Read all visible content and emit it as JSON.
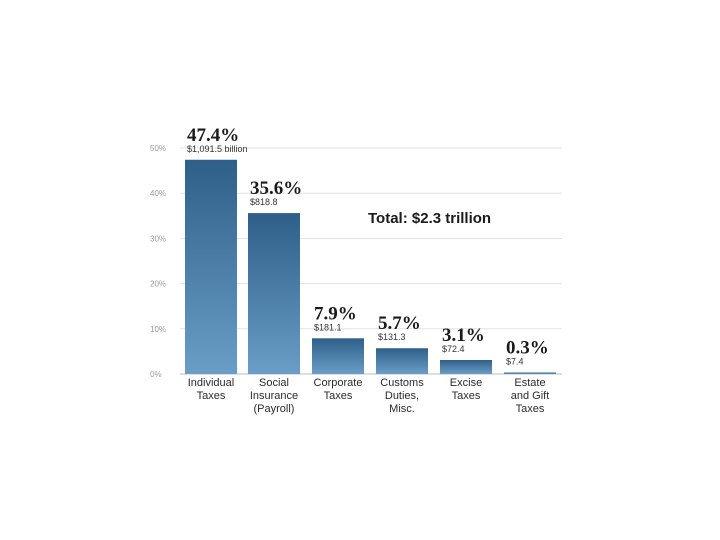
{
  "chart_data": {
    "type": "bar",
    "annotation": "Total: $2.3 trillion",
    "categories": [
      [
        "Individual",
        "Taxes"
      ],
      [
        "Social",
        "Insurance",
        "(Payroll)"
      ],
      [
        "Corporate",
        "Taxes"
      ],
      [
        "Customs",
        "Duties,",
        "Misc."
      ],
      [
        "Excise",
        "Taxes"
      ],
      [
        "Estate",
        "and Gift",
        "Taxes"
      ]
    ],
    "values": [
      47.4,
      35.6,
      7.9,
      5.7,
      3.1,
      0.3
    ],
    "value_labels": [
      "47.4%",
      "35.6%",
      "7.9%",
      "5.7%",
      "3.1%",
      "0.3%"
    ],
    "amount_labels": [
      "$1,091.5 billion",
      "$818.8",
      "$181.1",
      "$131.3",
      "$72.4",
      "$7.4"
    ],
    "y_ticks": [
      0,
      10,
      20,
      30,
      40,
      50
    ],
    "y_tick_labels": [
      "0%",
      "10%",
      "20%",
      "30%",
      "40%",
      "50%"
    ],
    "ylim": [
      0,
      50
    ],
    "grid": true,
    "colors": {
      "bar_top": "#2e5f88",
      "bar_bottom": "#6a9ec6",
      "grid": "#e2e2e2"
    }
  }
}
